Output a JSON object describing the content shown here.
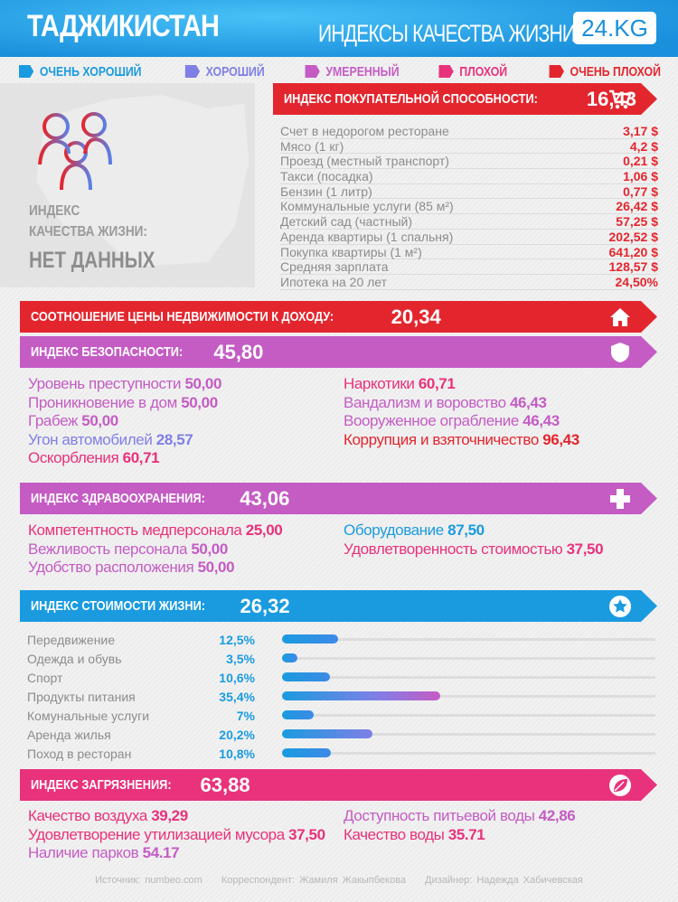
{
  "header": {
    "title": "ТАДЖИКИСТАН",
    "subtitle": "ИНДЕКСЫ КАЧЕСТВА ЖИЗНИ",
    "logo": "24.KG"
  },
  "colors": {
    "very_good": "#1a9be0",
    "good": "#7f7fe6",
    "moderate": "#c45cc4",
    "bad": "#e8327c",
    "very_bad": "#e3262e"
  },
  "legend": [
    {
      "label": "ОЧЕНЬ ХОРОШИЙ",
      "color": "#1a9be0"
    },
    {
      "label": "ХОРОШИЙ",
      "color": "#7f7fe6"
    },
    {
      "label": "УМЕРЕННЫЙ",
      "color": "#c45cc4"
    },
    {
      "label": "ПЛОХОЙ",
      "color": "#e8327c"
    },
    {
      "label": "ОЧЕНЬ ПЛОХОЙ",
      "color": "#e3262e"
    }
  ],
  "quality": {
    "label1": "ИНДЕКС",
    "label2": "КАЧЕСТВА ЖИЗНИ:",
    "value": "НЕТ ДАННЫХ"
  },
  "purchasing": {
    "label": "ИНДЕКС ПОКУПАТЕЛЬНОЙ СПОСОБНОСТИ:",
    "value": "16,43",
    "icon": "cart-icon",
    "items": [
      {
        "name": "Счет в недорогом ресторане",
        "value": "3,17 $"
      },
      {
        "name": "Мясо (1 кг)",
        "value": "4,2 $"
      },
      {
        "name": "Проезд (местный транспорт)",
        "value": "0,21 $"
      },
      {
        "name": "Такси (посадка)",
        "value": "1,06 $"
      },
      {
        "name": "Бензин (1 литр)",
        "value": "0,77 $"
      },
      {
        "name": "Коммунальные услуги (85 м²)",
        "value": "26,42 $"
      },
      {
        "name": "Детский сад (частный)",
        "value": "57,25 $"
      },
      {
        "name": "Аренда квартиры (1 спальня)",
        "value": "202,52 $"
      },
      {
        "name": "Покупка квартиры (1 м²)",
        "value": "641,20 $"
      },
      {
        "name": "Средняя зарплата",
        "value": "128,57 $"
      },
      {
        "name": "Ипотека на 20 лет",
        "value": "24,50%"
      }
    ]
  },
  "property": {
    "label": "СООТНОШЕНИЕ ЦЕНЫ НЕДВИЖИМОСТИ К ДОХОДУ:",
    "value": "20,34",
    "icon": "house-icon"
  },
  "safety": {
    "label": "ИНДЕКС БЕЗОПАСНОСТИ:",
    "value": "45,80",
    "icon": "shield-icon",
    "left": [
      {
        "name": "Уровень преступности",
        "value": "50,00",
        "color": "#c45cc4"
      },
      {
        "name": "Проникновение в дом",
        "value": "50,00",
        "color": "#c45cc4"
      },
      {
        "name": "Грабеж",
        "value": "50,00",
        "color": "#c45cc4"
      },
      {
        "name": "Угон автомобилей",
        "value": "28,57",
        "color": "#7f7fe6"
      },
      {
        "name": "Оскорбления",
        "value": "60,71",
        "color": "#e8327c"
      }
    ],
    "right": [
      {
        "name": "Наркотики",
        "value": "60,71",
        "color": "#e8327c"
      },
      {
        "name": "Вандализм и воровство",
        "value": "46,43",
        "color": "#c45cc4"
      },
      {
        "name": "Вооруженное ограбление",
        "value": "46,43",
        "color": "#c45cc4"
      },
      {
        "name": "Коррупция и взяточничество",
        "value": "96,43",
        "color": "#e3262e"
      }
    ]
  },
  "health": {
    "label": "ИНДЕКС ЗДРАВООХРАНЕНИЯ:",
    "value": "43,06",
    "icon": "plus-icon",
    "left": [
      {
        "name": "Компетентность медперсонала",
        "value": "25,00",
        "color": "#e8327c"
      },
      {
        "name": "Вежливость персонала",
        "value": "50,00",
        "color": "#c45cc4"
      },
      {
        "name": "Удобство расположения",
        "value": "50,00",
        "color": "#c45cc4"
      }
    ],
    "right": [
      {
        "name": "Оборудование",
        "value": "87,50",
        "color": "#1a9be0"
      },
      {
        "name": "Удовлетворенность стоимостью",
        "value": "37,50",
        "color": "#e8327c"
      }
    ]
  },
  "cost": {
    "label": "ИНДЕКС СТОИМОСТИ ЖИЗНИ:",
    "value": "26,32",
    "icon": "star-icon",
    "items": [
      {
        "name": "Передвижение",
        "pct": "12,5%",
        "value": 12.5
      },
      {
        "name": "Одежда и обувь",
        "pct": "3,5%",
        "value": 3.5
      },
      {
        "name": "Спорт",
        "pct": "10,6%",
        "value": 10.6
      },
      {
        "name": "Продукты питания",
        "pct": "35,4%",
        "value": 35.4
      },
      {
        "name": "Комунальные услуги",
        "pct": "7%",
        "value": 7
      },
      {
        "name": "Аренда жилья",
        "pct": "20,2%",
        "value": 20.2
      },
      {
        "name": "Поход в ресторан",
        "pct": "10,8%",
        "value": 10.8
      }
    ]
  },
  "pollution": {
    "label": "ИНДЕКС ЗАГРЯЗНЕНИЯ:",
    "value": "63,88",
    "icon": "leaf-icon",
    "left": [
      {
        "name": "Качество воздуха",
        "value": "39,29",
        "color": "#e8327c"
      },
      {
        "name": "Удовлетворение утилизацией мусора",
        "value": "37,50",
        "color": "#e8327c"
      },
      {
        "name": "Наличие парков",
        "value": "54.17",
        "color": "#c45cc4"
      }
    ],
    "right": [
      {
        "name": "Доступность питьевой воды",
        "value": "42,86",
        "color": "#c45cc4"
      },
      {
        "name": "Качество воды",
        "value": "35.71",
        "color": "#e8327c"
      }
    ]
  },
  "footer": {
    "source": "Источник: numbeo.com",
    "correspondent": "Корреспондент: Жамиля Жакыпбекова",
    "designer": "Дизайнер: Надежда Хабичевская"
  }
}
